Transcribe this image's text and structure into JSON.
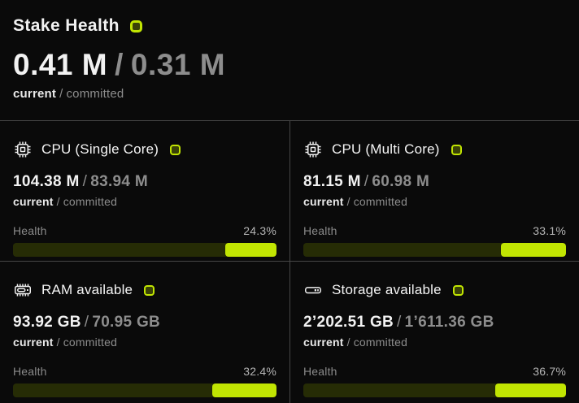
{
  "theme": {
    "background": "#0a0a0a",
    "accent": "#c1e502",
    "track": "#262c05",
    "divider": "#464646",
    "muted_text": "#8d8d8d"
  },
  "separator": "/",
  "header": {
    "title": "Stake Health",
    "current_value": "0.41 M",
    "committed_value": "0.31 M",
    "current_label": "current",
    "committed_label": "committed"
  },
  "cards": [
    {
      "icon": "cpu-icon",
      "title": "CPU (Single Core)",
      "current_value": "104.38 M",
      "committed_value": "83.94 M",
      "current_label": "current",
      "committed_label": "committed",
      "health_label": "Health",
      "health_percent_label": "24.3%",
      "health_percent": 24.3
    },
    {
      "icon": "cpu-icon",
      "title": "CPU (Multi Core)",
      "current_value": "81.15 M",
      "committed_value": "60.98 M",
      "current_label": "current",
      "committed_label": "committed",
      "health_label": "Health",
      "health_percent_label": "33.1%",
      "health_percent": 33.1
    },
    {
      "icon": "ram-icon",
      "title": "RAM available",
      "current_value": "93.92 GB",
      "committed_value": "70.95 GB",
      "current_label": "current",
      "committed_label": "committed",
      "health_label": "Health",
      "health_percent_label": "32.4%",
      "health_percent": 32.4
    },
    {
      "icon": "storage-icon",
      "title": "Storage available",
      "current_value": "2’202.51 GB",
      "committed_value": "1’611.36 GB",
      "current_label": "current",
      "committed_label": "committed",
      "health_label": "Health",
      "health_percent_label": "36.7%",
      "health_percent": 36.7
    }
  ]
}
